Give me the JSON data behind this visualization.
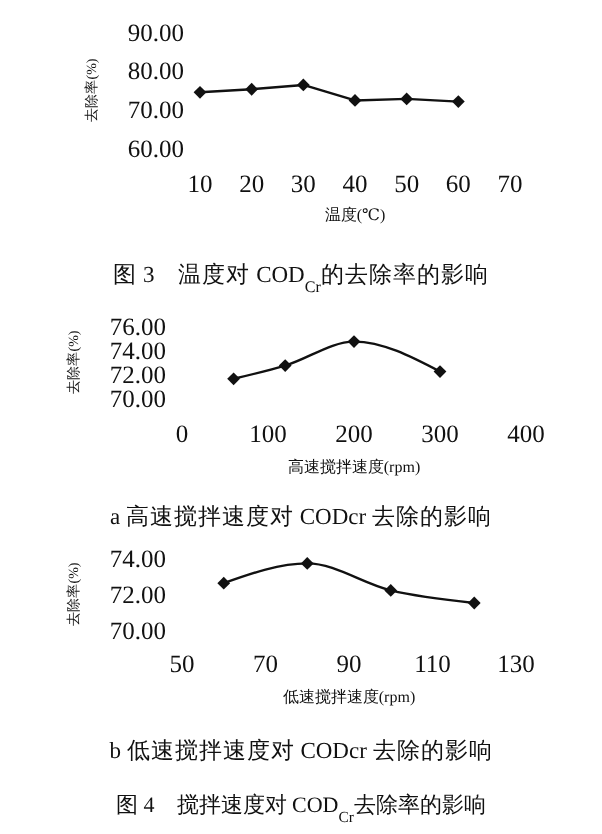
{
  "chart_data": [
    {
      "type": "line",
      "x": [
        10,
        20,
        30,
        40,
        50,
        60
      ],
      "values": [
        74.4,
        75.2,
        76.3,
        72.3,
        72.7,
        72.0
      ],
      "color": "#111111",
      "marker": "diamond",
      "xlim": [
        10,
        70
      ],
      "xticks": [
        10,
        20,
        30,
        40,
        50,
        60,
        70
      ],
      "ylim": [
        60,
        90
      ],
      "yticks": [
        {
          "value": 60,
          "label": "60.00"
        },
        {
          "value": 70,
          "label": "70.00"
        },
        {
          "value": 80,
          "label": "80.00"
        },
        {
          "value": 90,
          "label": "90.00"
        }
      ],
      "xlabel": "温度(℃)",
      "ylabel": "去除率(%)",
      "annotations": [
        "图 3　温度对 COD$_{Cr}$的去除率的影响"
      ]
    },
    {
      "type": "line",
      "x": [
        60,
        120,
        200,
        300
      ],
      "values": [
        71.6,
        72.7,
        74.7,
        72.2
      ],
      "color": "#111111",
      "marker": "diamond",
      "xlim": [
        0,
        400
      ],
      "xticks": [
        0,
        100,
        200,
        300,
        400
      ],
      "ylim": [
        70,
        76
      ],
      "yticks": [
        {
          "value": 70,
          "label": "70.00"
        },
        {
          "value": 72,
          "label": "72.00"
        },
        {
          "value": 74,
          "label": "74.00"
        },
        {
          "value": 76,
          "label": "76.00"
        }
      ],
      "xlabel": "高速搅拌速度(rpm)",
      "ylabel": "去除率(%)",
      "annotations": [
        "a 高速搅拌速度对 CODcr 去除的影响"
      ]
    },
    {
      "type": "line",
      "x": [
        60,
        80,
        100,
        120
      ],
      "values": [
        72.6,
        73.7,
        72.2,
        71.5
      ],
      "color": "#111111",
      "marker": "diamond",
      "xlim": [
        50,
        130
      ],
      "xticks": [
        50,
        70,
        90,
        110,
        130
      ],
      "ylim": [
        70,
        74
      ],
      "yticks": [
        {
          "value": 70,
          "label": "70.00"
        },
        {
          "value": 72,
          "label": "72.00"
        },
        {
          "value": 74,
          "label": "74.00"
        }
      ],
      "xlabel": "低速搅拌速度(rpm)",
      "ylabel": "去除率(%)",
      "annotations": [
        "b 低速搅拌速度对 CODcr 去除的影响",
        "图 4　搅拌速度对 COD$_{Cr}$去除率的影响"
      ]
    }
  ]
}
